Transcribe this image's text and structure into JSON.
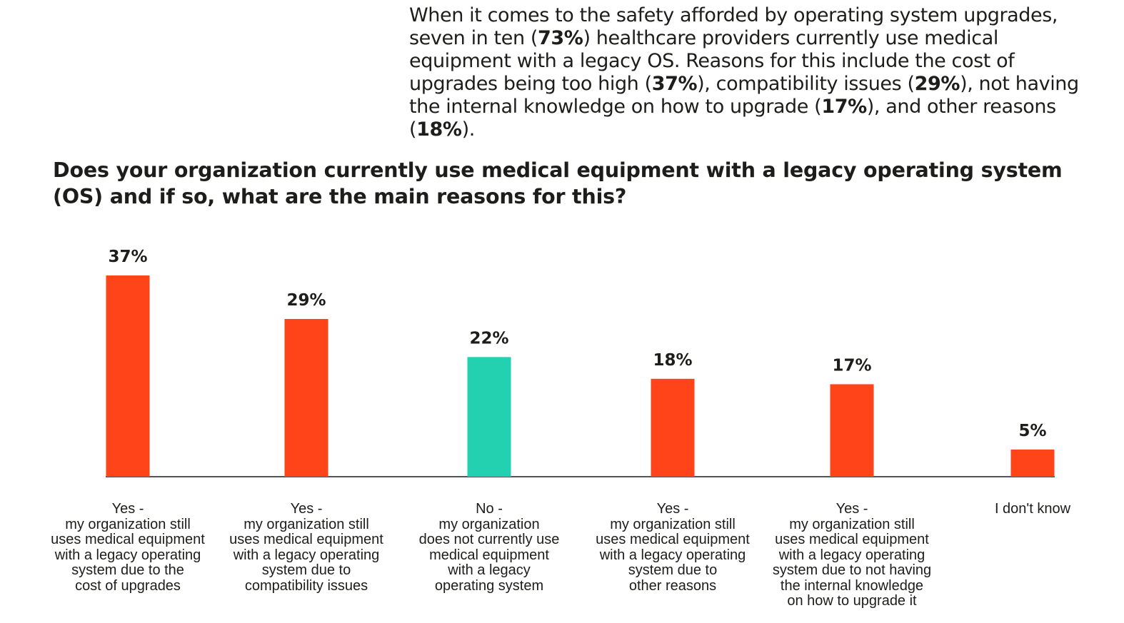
{
  "intro": {
    "segments": [
      {
        "text": "When it comes to the safety afforded by operating system upgrades, seven in ten (",
        "bold": false
      },
      {
        "text": "73%",
        "bold": true
      },
      {
        "text": ") healthcare providers currently use medical equipment with a legacy OS. Reasons for this include the cost of upgrades being too high (",
        "bold": false
      },
      {
        "text": "37%",
        "bold": true
      },
      {
        "text": "), compatibility issues (",
        "bold": false
      },
      {
        "text": "29%",
        "bold": true
      },
      {
        "text": "), not having the internal knowledge on how to upgrade (",
        "bold": false
      },
      {
        "text": "17%",
        "bold": true
      },
      {
        "text": "), and other reasons (",
        "bold": false
      },
      {
        "text": "18%",
        "bold": true
      },
      {
        "text": ").",
        "bold": false
      }
    ]
  },
  "chart_data": {
    "type": "bar",
    "title": "Does your organization currently use medical equipment with a legacy operating system (OS) and if so, what are the main reasons for this?",
    "categories": [
      "Yes -\nmy organization still\nuses medical equipment\nwith a legacy operating\nsystem due to the\ncost of upgrades",
      "Yes -\nmy organization still\nuses medical equipment\nwith a legacy operating\nsystem due to\ncompatibility issues",
      "No -\nmy organization\ndoes not currently use\nmedical equipment\nwith a legacy\noperating system",
      "Yes -\nmy organization still\nuses medical equipment\nwith a legacy operating\nsystem due to\nother reasons",
      "Yes -\nmy organization still\nuses medical equipment\nwith a legacy operating\nsystem due to not having\nthe internal knowledge\non how to upgrade it",
      "I don't know"
    ],
    "values": [
      37,
      29,
      22,
      18,
      17,
      5
    ],
    "value_labels": [
      "37%",
      "29%",
      "22%",
      "18%",
      "17%",
      "5%"
    ],
    "unit": "%",
    "colors": [
      "#ff4419",
      "#ff4419",
      "#23d0b0",
      "#ff4419",
      "#ff4419",
      "#ff4419"
    ],
    "axis_color": "#1d1d1b",
    "ylim": [
      0,
      37
    ],
    "grid": false,
    "legend": "none"
  }
}
